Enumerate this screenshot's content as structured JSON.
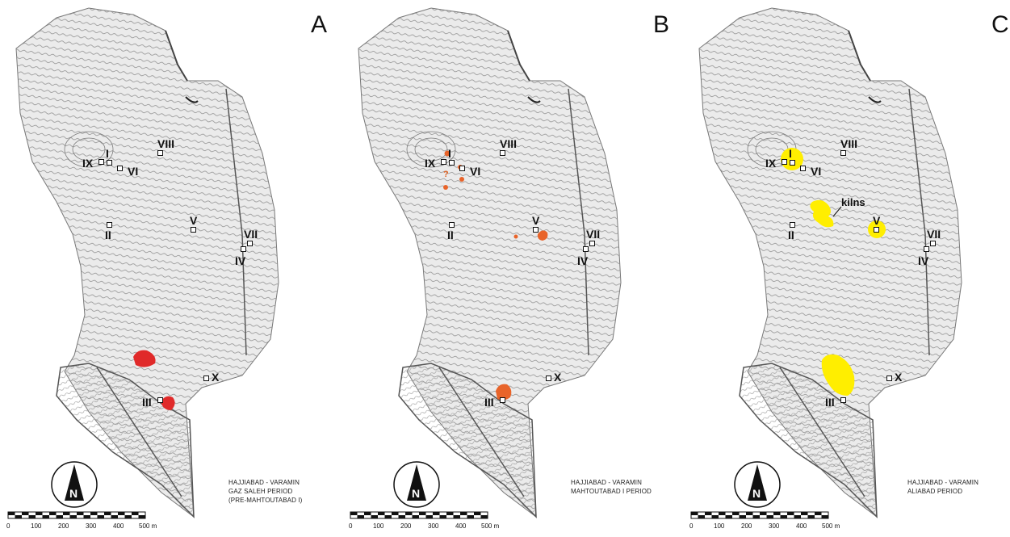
{
  "panels": [
    {
      "letter": "A",
      "caption": [
        "HAJJIABAD - VARAMIN",
        "GAZ SALEH PERIOD",
        "(PRE-MAHTOUTABAD I)"
      ],
      "color_name": "red",
      "color": "#e02a2a"
    },
    {
      "letter": "B",
      "caption": [
        "HAJJIABAD - VARAMIN",
        "MAHTOUTABAD I PERIOD"
      ],
      "color_name": "orange",
      "color": "#e8642a",
      "question_mark": "?"
    },
    {
      "letter": "C",
      "caption": [
        "HAJJIABAD - VARAMIN",
        "ALIABAD PERIOD"
      ],
      "color_name": "yellow",
      "color": "#ffee00",
      "annotation": "kilns"
    }
  ],
  "trench_labels": [
    "I",
    "II",
    "III",
    "IV",
    "V",
    "VI",
    "VII",
    "VIII",
    "IX",
    "X"
  ],
  "north_arrow": "N",
  "scale_bar": {
    "ticks": [
      "0",
      "100",
      "200",
      "300",
      "400",
      "500 m"
    ]
  },
  "colors": {
    "contour": "#8a8a8a",
    "terrain_fill": "#ebebeb",
    "text": "#111111"
  },
  "icons": [
    "north-arrow-icon",
    "scale-bar-icon",
    "trench-marker-icon"
  ]
}
